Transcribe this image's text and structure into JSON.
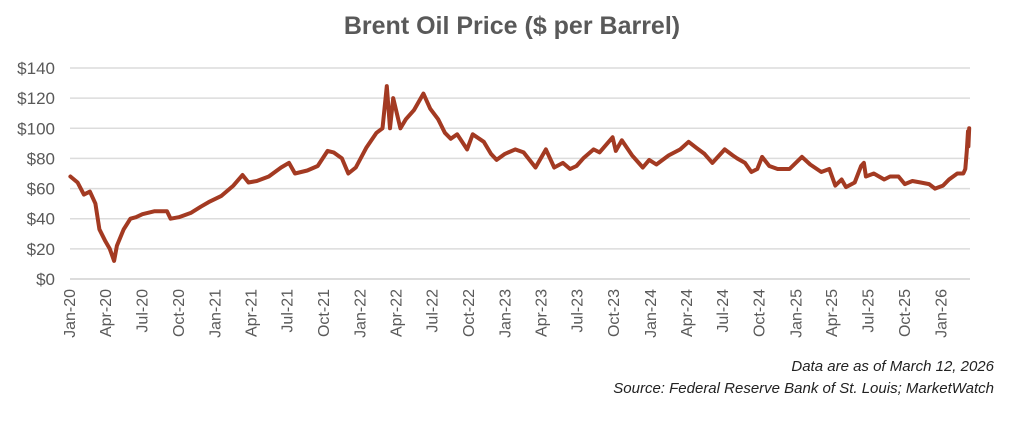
{
  "chart_data": {
    "type": "line",
    "title": "Brent Oil Price ($ per Barrel)",
    "xlabel": "",
    "ylabel": "",
    "ylim": [
      0,
      140
    ],
    "grid": true,
    "line_color": "#a33a22",
    "yticks": [
      "$0",
      "$20",
      "$40",
      "$60",
      "$80",
      "$100",
      "$120",
      "$140"
    ],
    "ytick_values": [
      0,
      20,
      40,
      60,
      80,
      100,
      120,
      140
    ],
    "xticks": [
      {
        "label": "Jan-20",
        "date": "2020-01-01"
      },
      {
        "label": "Apr-20",
        "date": "2020-04-01"
      },
      {
        "label": "Jul-20",
        "date": "2020-07-01"
      },
      {
        "label": "Oct-20",
        "date": "2020-10-01"
      },
      {
        "label": "Jan-21",
        "date": "2021-01-01"
      },
      {
        "label": "Apr-21",
        "date": "2021-04-01"
      },
      {
        "label": "Jul-21",
        "date": "2021-07-01"
      },
      {
        "label": "Oct-21",
        "date": "2021-10-01"
      },
      {
        "label": "Jan-22",
        "date": "2022-01-01"
      },
      {
        "label": "Apr-22",
        "date": "2022-04-01"
      },
      {
        "label": "Jul-22",
        "date": "2022-07-01"
      },
      {
        "label": "Oct-22",
        "date": "2022-10-01"
      },
      {
        "label": "Jan-23",
        "date": "2023-01-01"
      },
      {
        "label": "Apr-23",
        "date": "2023-04-01"
      },
      {
        "label": "Jul-23",
        "date": "2023-07-01"
      },
      {
        "label": "Oct-23",
        "date": "2023-10-01"
      },
      {
        "label": "Jan-24",
        "date": "2024-01-01"
      },
      {
        "label": "Apr-24",
        "date": "2024-04-01"
      },
      {
        "label": "Jul-24",
        "date": "2024-07-01"
      },
      {
        "label": "Oct-24",
        "date": "2024-10-01"
      },
      {
        "label": "Jan-25",
        "date": "2025-01-01"
      },
      {
        "label": "Apr-25",
        "date": "2025-04-01"
      },
      {
        "label": "Jul-25",
        "date": "2025-07-01"
      },
      {
        "label": "Oct-25",
        "date": "2025-10-01"
      },
      {
        "label": "Jan-26",
        "date": "2026-01-01"
      }
    ],
    "series": [
      {
        "name": "Brent",
        "x": [
          "2020-01-02",
          "2020-01-20",
          "2020-02-05",
          "2020-02-20",
          "2020-03-05",
          "2020-03-15",
          "2020-03-30",
          "2020-04-10",
          "2020-04-21",
          "2020-04-28",
          "2020-05-15",
          "2020-06-01",
          "2020-06-15",
          "2020-07-01",
          "2020-08-01",
          "2020-09-01",
          "2020-09-10",
          "2020-10-01",
          "2020-11-01",
          "2020-11-25",
          "2020-12-15",
          "2021-01-15",
          "2021-02-15",
          "2021-03-10",
          "2021-03-25",
          "2021-04-15",
          "2021-05-15",
          "2021-06-15",
          "2021-07-05",
          "2021-07-20",
          "2021-08-20",
          "2021-09-15",
          "2021-10-10",
          "2021-10-25",
          "2021-11-15",
          "2021-12-01",
          "2021-12-20",
          "2022-01-15",
          "2022-02-10",
          "2022-02-25",
          "2022-03-08",
          "2022-03-16",
          "2022-03-24",
          "2022-04-11",
          "2022-04-25",
          "2022-05-15",
          "2022-06-08",
          "2022-06-25",
          "2022-07-15",
          "2022-08-01",
          "2022-08-16",
          "2022-09-01",
          "2022-09-26",
          "2022-10-10",
          "2022-11-07",
          "2022-11-25",
          "2022-12-09",
          "2022-12-30",
          "2023-01-25",
          "2023-02-15",
          "2023-03-17",
          "2023-04-12",
          "2023-05-03",
          "2023-05-25",
          "2023-06-12",
          "2023-06-28",
          "2023-07-15",
          "2023-08-10",
          "2023-08-25",
          "2023-09-27",
          "2023-10-05",
          "2023-10-20",
          "2023-11-15",
          "2023-12-12",
          "2023-12-28",
          "2024-01-15",
          "2024-02-15",
          "2024-03-15",
          "2024-04-05",
          "2024-04-25",
          "2024-05-15",
          "2024-06-04",
          "2024-07-05",
          "2024-07-25",
          "2024-08-05",
          "2024-08-25",
          "2024-09-10",
          "2024-09-25",
          "2024-10-07",
          "2024-10-25",
          "2024-11-15",
          "2024-12-15",
          "2025-01-15",
          "2025-02-05",
          "2025-03-05",
          "2025-03-25",
          "2025-04-09",
          "2025-04-25",
          "2025-05-06",
          "2025-05-28",
          "2025-06-13",
          "2025-06-20",
          "2025-06-25",
          "2025-07-15",
          "2025-08-10",
          "2025-08-25",
          "2025-09-15",
          "2025-10-01",
          "2025-10-20",
          "2025-11-10",
          "2025-12-01",
          "2025-12-16",
          "2026-01-05",
          "2026-01-20",
          "2026-02-10",
          "2026-02-25",
          "2026-03-02",
          "2026-03-06",
          "2026-03-09",
          "2026-03-10",
          "2026-03-12"
        ],
        "y": [
          68,
          64,
          56,
          58,
          50,
          33,
          25,
          20,
          12,
          22,
          33,
          40,
          41,
          43,
          45,
          45,
          40,
          41,
          44,
          48,
          51,
          55,
          62,
          69,
          64,
          65,
          68,
          74,
          77,
          70,
          72,
          75,
          85,
          84,
          80,
          70,
          74,
          87,
          97,
          100,
          128,
          100,
          120,
          100,
          106,
          112,
          123,
          113,
          106,
          97,
          93,
          96,
          86,
          96,
          91,
          83,
          79,
          83,
          86,
          84,
          74,
          86,
          74,
          77,
          73,
          75,
          80,
          86,
          84,
          94,
          85,
          92,
          82,
          74,
          79,
          76,
          82,
          86,
          91,
          87,
          83,
          77,
          86,
          82,
          80,
          77,
          71,
          73,
          81,
          75,
          73,
          73,
          81,
          76,
          71,
          73,
          62,
          66,
          61,
          64,
          75,
          77,
          68,
          70,
          66,
          68,
          68,
          63,
          65,
          64,
          63,
          60,
          62,
          66,
          70,
          70,
          73,
          85,
          98,
          88,
          100
        ]
      }
    ]
  },
  "notes": {
    "as_of": "Data are as of March 12, 2026",
    "source": "Source: Federal Reserve Bank of St. Louis; MarketWatch"
  }
}
